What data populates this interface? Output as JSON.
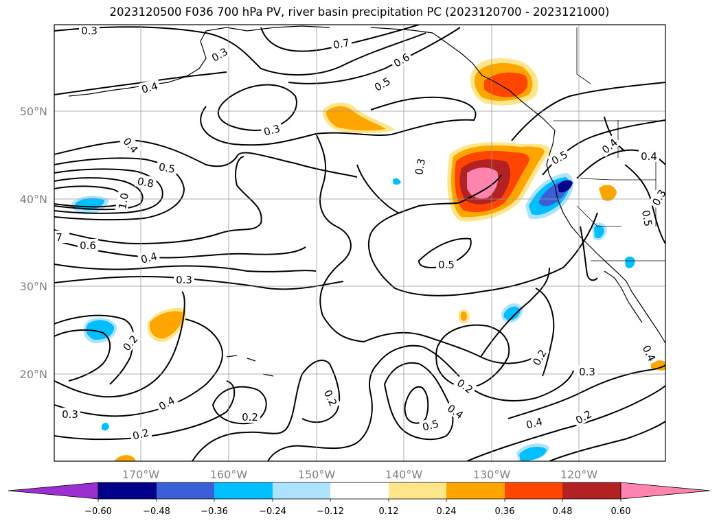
{
  "title": "2023120500 F036 700 hPa PV, river basin precipitation PC (2023120700 - 2023121000)",
  "lat_labels": [
    "50°N",
    "40°N",
    "30°N",
    "20°N"
  ],
  "lon_labels": [
    "170°W",
    "160°W",
    "150°W",
    "140°W",
    "130°W",
    "120°W"
  ],
  "colorbar": {
    "ticks": [
      "−0.60",
      "−0.48",
      "−0.36",
      "−0.24",
      "−0.12",
      "0.12",
      "0.24",
      "0.36",
      "0.48",
      "0.60"
    ],
    "colors": [
      "#9b30d0",
      "#00008b",
      "#3b5fd6",
      "#00bfff",
      "#ade3ff",
      "#ffffff",
      "#ffe68a",
      "#ffa500",
      "#ff4500",
      "#b22222",
      "#ff85b0"
    ]
  },
  "contour_labels": [
    {
      "text": "0.3"
    },
    {
      "text": "0.3"
    },
    {
      "text": "0.7"
    },
    {
      "text": "0.6"
    },
    {
      "text": "0.4"
    },
    {
      "text": "0.5"
    },
    {
      "text": "0.3"
    },
    {
      "text": "0.3"
    },
    {
      "text": "0.4"
    },
    {
      "text": "0.5"
    },
    {
      "text": "0.8"
    },
    {
      "text": "1.0"
    },
    {
      "text": "0.3"
    },
    {
      "text": "0.5"
    },
    {
      "text": "0.4"
    },
    {
      "text": "0.4"
    },
    {
      "text": "0.5"
    },
    {
      "text": "7"
    },
    {
      "text": "0.6"
    },
    {
      "text": "0.4"
    },
    {
      "text": "0.3"
    },
    {
      "text": "0.5"
    },
    {
      "text": "0.2"
    },
    {
      "text": "0.4"
    },
    {
      "text": "0.3"
    },
    {
      "text": "0.2"
    },
    {
      "text": "0.2"
    },
    {
      "text": "0.2"
    },
    {
      "text": "0.2"
    },
    {
      "text": "0.3"
    },
    {
      "text": "0.4"
    },
    {
      "text": "0.5"
    },
    {
      "text": "0.4"
    },
    {
      "text": "0.2"
    },
    {
      "text": "0.4"
    },
    {
      "text": "0.2"
    }
  ]
}
